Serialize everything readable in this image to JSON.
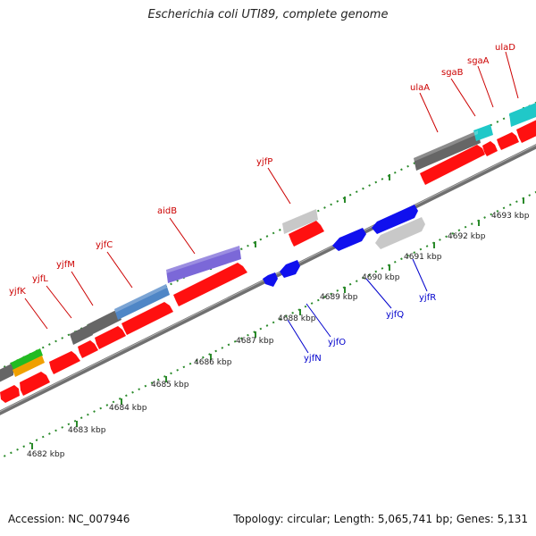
{
  "title": "Escherichia coli UTI89, complete genome",
  "footer": {
    "accession": "Accession: NC_007946",
    "summary": "Topology: circular; Length: 5,065,741 bp; Genes: 5,131"
  },
  "colors": {
    "forward_gene_label": "#cc0000",
    "reverse_gene_label": "#0000cc",
    "backbone": "#707070",
    "tick_forward": "#1a7a1a",
    "tick_reverse": "#1a7a1a",
    "red_arrow": "#ff1010",
    "blue_arrow": "#1010ee",
    "gray_block": "#666666",
    "light_gray_block": "#c8c8c8",
    "purple_block": "#7b68d8",
    "steelblue_block": "#4f86c6",
    "cyan_block": "#20c8c8",
    "green_block": "#22bb22",
    "orange_block": "#f0a000"
  },
  "scale": {
    "labels": [
      "4682 kbp",
      "4683 kbp",
      "4684 kbp",
      "4685 kbp",
      "4686 kbp",
      "4687 kbp",
      "4688 kbp",
      "4689 kbp",
      "4690 kbp",
      "4691 kbp",
      "4692 kbp",
      "4693 kbp"
    ]
  },
  "forward_genes": [
    {
      "name": "yjfK"
    },
    {
      "name": "yjfL"
    },
    {
      "name": "yjfM"
    },
    {
      "name": "yjfC"
    },
    {
      "name": "aidB"
    },
    {
      "name": "yjfP"
    },
    {
      "name": "ulaA"
    },
    {
      "name": "sgaB"
    },
    {
      "name": "sgaA"
    },
    {
      "name": "ulaD"
    }
  ],
  "reverse_genes": [
    {
      "name": "yjfN"
    },
    {
      "name": "yjfO"
    },
    {
      "name": "yjfQ"
    },
    {
      "name": "yjfR"
    }
  ]
}
